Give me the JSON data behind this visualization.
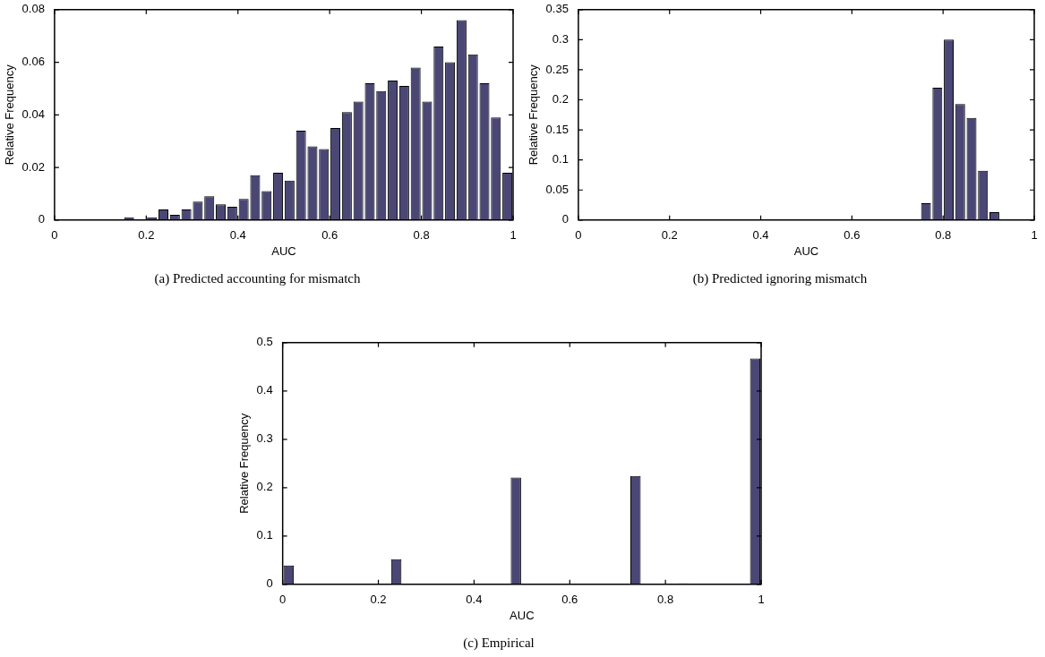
{
  "chart_data": [
    {
      "type": "histogram",
      "title": "(a) Predicted accounting for mismatch",
      "xlabel": "AUC",
      "ylabel": "Relative Frequency",
      "color": "#4a4775",
      "bins": [
        0,
        0.025,
        0.05,
        0.075,
        0.1,
        0.125,
        0.15,
        0.175,
        0.2,
        0.225,
        0.25,
        0.275,
        0.3,
        0.325,
        0.35,
        0.375,
        0.4,
        0.425,
        0.45,
        0.475,
        0.5,
        0.525,
        0.55,
        0.575,
        0.6,
        0.625,
        0.65,
        0.675,
        0.7,
        0.725,
        0.75,
        0.775,
        0.8,
        0.825,
        0.85,
        0.875,
        0.9,
        0.925,
        0.95,
        0.975,
        1
      ],
      "values": [
        0,
        0,
        0,
        0,
        0,
        0,
        0.001,
        0,
        0.001,
        0.004,
        0.002,
        0.004,
        0.007,
        0.009,
        0.006,
        0.005,
        0.008,
        0.017,
        0.011,
        0.018,
        0.015,
        0.034,
        0.028,
        0.027,
        0.035,
        0.041,
        0.045,
        0.052,
        0.049,
        0.053,
        0.051,
        0.058,
        0.045,
        0.066,
        0.06,
        0.076,
        0.063,
        0.052,
        0.039,
        0.018
      ],
      "xlim": [
        0,
        1
      ],
      "xticks": [
        0,
        0.2,
        0.4,
        0.6,
        0.8,
        1
      ],
      "ylim": [
        0,
        0.08
      ],
      "yticks": [
        0,
        0.02,
        0.04,
        0.06,
        0.08
      ]
    },
    {
      "type": "histogram",
      "title": "(b) Predicted ignoring mismatch",
      "xlabel": "AUC",
      "ylabel": "Relative Frequency",
      "color": "#4a4775",
      "bins": [
        0,
        0.025,
        0.05,
        0.075,
        0.1,
        0.125,
        0.15,
        0.175,
        0.2,
        0.225,
        0.25,
        0.275,
        0.3,
        0.325,
        0.35,
        0.375,
        0.4,
        0.425,
        0.45,
        0.475,
        0.5,
        0.525,
        0.55,
        0.575,
        0.6,
        0.625,
        0.65,
        0.675,
        0.7,
        0.725,
        0.75,
        0.775,
        0.8,
        0.825,
        0.85,
        0.875,
        0.9,
        0.925,
        0.95,
        0.975,
        1
      ],
      "values": [
        0,
        0,
        0,
        0,
        0,
        0,
        0,
        0,
        0,
        0,
        0,
        0,
        0,
        0,
        0,
        0,
        0,
        0,
        0,
        0,
        0,
        0,
        0,
        0,
        0,
        0,
        0,
        0,
        0,
        0,
        0.028,
        0.22,
        0.3,
        0.193,
        0.17,
        0.082,
        0.013,
        0,
        0,
        0
      ],
      "xlim": [
        0,
        1
      ],
      "xticks": [
        0,
        0.2,
        0.4,
        0.6,
        0.8,
        1
      ],
      "ylim": [
        0,
        0.35
      ],
      "yticks": [
        0,
        0.05,
        0.1,
        0.15,
        0.2,
        0.25,
        0.3,
        0.35
      ]
    },
    {
      "type": "histogram",
      "title": "(c) Empirical",
      "xlabel": "AUC",
      "ylabel": "Relative Frequency",
      "color": "#4a4775",
      "bins": [
        0,
        0.025,
        0.05,
        0.075,
        0.1,
        0.125,
        0.15,
        0.175,
        0.2,
        0.225,
        0.25,
        0.275,
        0.3,
        0.325,
        0.35,
        0.375,
        0.4,
        0.425,
        0.45,
        0.475,
        0.5,
        0.525,
        0.55,
        0.575,
        0.6,
        0.625,
        0.65,
        0.675,
        0.7,
        0.725,
        0.75,
        0.775,
        0.8,
        0.825,
        0.85,
        0.875,
        0.9,
        0.925,
        0.95,
        0.975,
        1
      ],
      "values": [
        0.039,
        0,
        0,
        0,
        0,
        0,
        0,
        0,
        0,
        0.052,
        0,
        0,
        0,
        0,
        0,
        0,
        0,
        0,
        0,
        0.221,
        0,
        0,
        0,
        0,
        0,
        0,
        0,
        0,
        0,
        0.224,
        0,
        0,
        0,
        0.002,
        0,
        0,
        0,
        0,
        0,
        0.467
      ],
      "xlim": [
        0,
        1
      ],
      "xticks": [
        0,
        0.2,
        0.4,
        0.6,
        0.8,
        1
      ],
      "ylim": [
        0,
        0.5
      ],
      "yticks": [
        0,
        0.1,
        0.2,
        0.3,
        0.4,
        0.5
      ]
    }
  ]
}
